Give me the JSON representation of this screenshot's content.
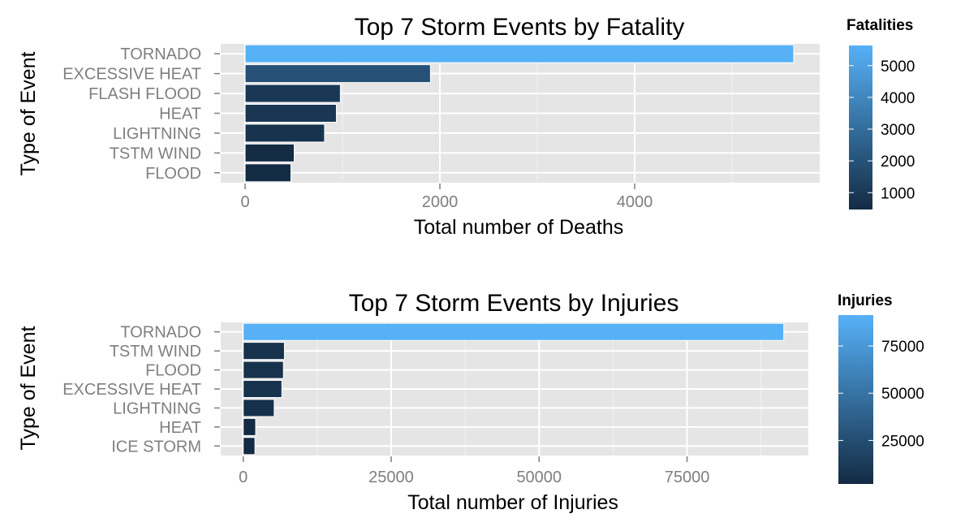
{
  "chart_data": [
    {
      "type": "bar",
      "orientation": "horizontal",
      "title": "Top 7 Storm Events by Fatality",
      "xlabel": "Total number of Deaths",
      "ylabel": "Type of Event",
      "categories": [
        "TORNADO",
        "EXCESSIVE HEAT",
        "FLASH FLOOD",
        "HEAT",
        "LIGHTNING",
        "TSTM WIND",
        "FLOOD"
      ],
      "values": [
        5633,
        1903,
        978,
        937,
        816,
        504,
        470
      ],
      "xlim": [
        -250,
        5900
      ],
      "xticks": [
        0,
        2000,
        4000
      ],
      "xtick_labels": [
        "0",
        "2000",
        "4000"
      ],
      "grid": true,
      "legend": {
        "title": "Fatalities",
        "position": "right",
        "type": "colorbar",
        "range": [
          470,
          5633
        ],
        "ticks": [
          1000,
          2000,
          3000,
          4000,
          5000
        ],
        "tick_labels": [
          "1000",
          "2000",
          "3000",
          "4000",
          "5000"
        ],
        "color_low": "#132B43",
        "color_high": "#56B1F7"
      }
    },
    {
      "type": "bar",
      "orientation": "horizontal",
      "title": "Top 7 Storm Events by Injuries",
      "xlabel": "Total number of Injuries",
      "ylabel": "Type of Event",
      "categories": [
        "TORNADO",
        "TSTM WIND",
        "FLOOD",
        "EXCESSIVE HEAT",
        "LIGHTNING",
        "HEAT",
        "ICE STORM"
      ],
      "values": [
        91346,
        6957,
        6789,
        6525,
        5230,
        2100,
        1975
      ],
      "xlim": [
        -3800,
        95500
      ],
      "xticks": [
        0,
        25000,
        50000,
        75000
      ],
      "xtick_labels": [
        "0",
        "25000",
        "50000",
        "75000"
      ],
      "grid": true,
      "legend": {
        "title": "Injuries",
        "position": "right",
        "type": "colorbar",
        "range": [
          1975,
          91346
        ],
        "ticks": [
          25000,
          50000,
          75000
        ],
        "tick_labels": [
          "25000",
          "50000",
          "75000"
        ],
        "color_low": "#132B43",
        "color_high": "#56B1F7"
      }
    }
  ],
  "colors": {
    "panel_background": "#E5E5E5",
    "grid_major": "#FFFFFF",
    "grid_minor": "#F2F2F2",
    "axis_text": "#7F7F7F",
    "title_text": "#000000"
  }
}
